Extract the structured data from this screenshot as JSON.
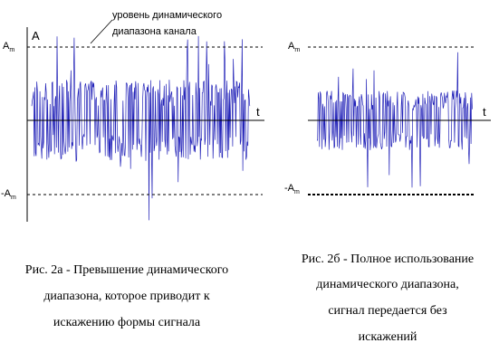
{
  "left_panel": {
    "annotation": [
      "уровень динамического",
      "диапазона канала"
    ],
    "axis_y_label": "A",
    "upper_level": {
      "main": "A",
      "sub": "m"
    },
    "lower_level": {
      "main": "-A",
      "sub": "m"
    },
    "x_axis_label": "t",
    "caption": [
      "Рис. 2а  - Превышение динамического",
      "диапазона, которое приводит к",
      "искажению формы сигнала"
    ]
  },
  "right_panel": {
    "upper_level": {
      "main": "A",
      "sub": "m"
    },
    "lower_level": {
      "main": "-A",
      "sub": "m"
    },
    "x_axis_label": "t",
    "caption": [
      "Рис. 2б  - Полное использование",
      "динамического диапазона,",
      "сигнал передается без",
      "искажений"
    ]
  }
}
